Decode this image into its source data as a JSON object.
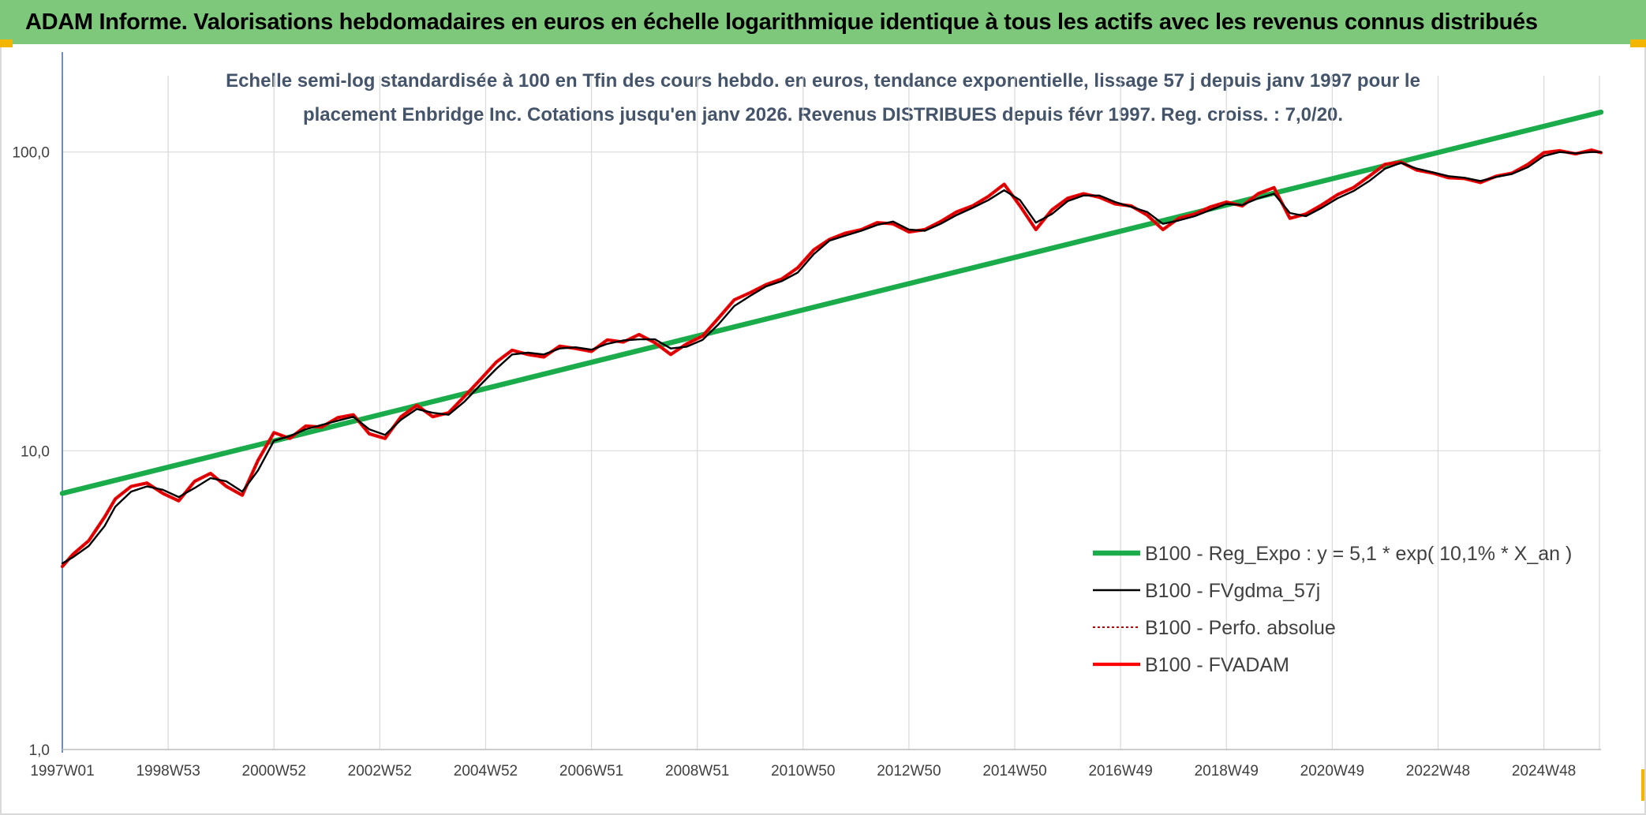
{
  "header": {
    "title": "ADAM Informe. Valorisations hebdomadaires en euros en échelle logarithmique identique à tous les actifs avec les revenus connus distribués"
  },
  "colors": {
    "banner": "#7dc87a",
    "trend": "#1aab4b",
    "moving_average": "#000000",
    "absolute": "#c00000",
    "fvadam": "#ff0000"
  },
  "chart_data": {
    "type": "line",
    "title": "Echelle semi-log standardisée à 100 en Tfin des cours hebdo. en euros, tendance exponentielle, lissage 57 j depuis janv 1997 pour le",
    "subtitle": "placement Enbridge Inc. Cotations jusqu'en janv 2026. Revenus DISTRIBUES depuis févr 1997. Reg. croiss. : 7,0/20.",
    "yscale": "log",
    "ylim": [
      1,
      180
    ],
    "xlim": [
      1997.0,
      2026.08
    ],
    "yticks": [
      {
        "value": 1,
        "label": "1,0"
      },
      {
        "value": 10,
        "label": "10,0"
      },
      {
        "value": 100,
        "label": "100,0"
      }
    ],
    "xticks": [
      {
        "value": 1997.0,
        "label": "1997W01"
      },
      {
        "value": 1999.0,
        "label": "1998W53"
      },
      {
        "value": 2001.0,
        "label": "2000W52"
      },
      {
        "value": 2003.0,
        "label": "2002W52"
      },
      {
        "value": 2005.0,
        "label": "2004W52"
      },
      {
        "value": 2007.0,
        "label": "2006W51"
      },
      {
        "value": 2009.0,
        "label": "2008W51"
      },
      {
        "value": 2011.0,
        "label": "2010W50"
      },
      {
        "value": 2013.0,
        "label": "2012W50"
      },
      {
        "value": 2015.0,
        "label": "2014W50"
      },
      {
        "value": 2017.0,
        "label": "2016W49"
      },
      {
        "value": 2019.0,
        "label": "2018W49"
      },
      {
        "value": 2021.0,
        "label": "2020W49"
      },
      {
        "value": 2023.0,
        "label": "2022W48"
      },
      {
        "value": 2025.0,
        "label": "2024W48"
      }
    ],
    "grid": true,
    "legend_position": "bottom-right",
    "series": [
      {
        "name": "B100 - Reg_Expo : y = 5,1 * exp( 10,1% *  X_an )",
        "style": "trend",
        "x": [
          1997.0,
          2026.08
        ],
        "y": [
          7.2,
          136
        ]
      },
      {
        "name": "B100 - FVgdma_57j",
        "style": "moving_average",
        "x": [
          1997.0,
          1997.2,
          1997.5,
          1997.8,
          1998.0,
          1998.3,
          1998.6,
          1998.9,
          1999.2,
          1999.5,
          1999.8,
          2000.1,
          2000.4,
          2000.7,
          2001.0,
          2001.3,
          2001.6,
          2001.9,
          2002.2,
          2002.5,
          2002.8,
          2003.1,
          2003.4,
          2003.7,
          2004.0,
          2004.3,
          2004.6,
          2004.9,
          2005.2,
          2005.5,
          2005.8,
          2006.1,
          2006.4,
          2006.7,
          2007.0,
          2007.3,
          2007.6,
          2007.9,
          2008.2,
          2008.5,
          2008.8,
          2009.1,
          2009.4,
          2009.7,
          2010.0,
          2010.3,
          2010.6,
          2010.9,
          2011.2,
          2011.5,
          2011.8,
          2012.1,
          2012.4,
          2012.7,
          2013.0,
          2013.3,
          2013.6,
          2013.9,
          2014.2,
          2014.5,
          2014.8,
          2015.1,
          2015.4,
          2015.7,
          2016.0,
          2016.3,
          2016.6,
          2016.9,
          2017.2,
          2017.5,
          2017.8,
          2018.1,
          2018.4,
          2018.7,
          2019.0,
          2019.3,
          2019.6,
          2019.9,
          2020.2,
          2020.5,
          2020.8,
          2021.1,
          2021.4,
          2021.7,
          2022.0,
          2022.3,
          2022.6,
          2022.9,
          2023.2,
          2023.5,
          2023.8,
          2024.1,
          2024.4,
          2024.7,
          2025.0,
          2025.3,
          2025.6,
          2025.9,
          2026.08
        ],
        "y": [
          4.2,
          4.4,
          4.8,
          5.6,
          6.5,
          7.3,
          7.6,
          7.4,
          7.0,
          7.5,
          8.1,
          7.9,
          7.3,
          8.6,
          10.8,
          11.2,
          11.8,
          12.2,
          12.6,
          13.0,
          11.8,
          11.3,
          12.7,
          13.8,
          13.4,
          13.2,
          14.6,
          16.6,
          18.8,
          21.0,
          21.3,
          21.0,
          22.0,
          22.2,
          21.8,
          22.8,
          23.4,
          23.6,
          23.6,
          22.0,
          22.3,
          23.5,
          26.5,
          30.5,
          33.0,
          35.5,
          37.0,
          39.5,
          45.5,
          50.5,
          52.5,
          54.5,
          57.0,
          58.5,
          55.0,
          54.5,
          57.5,
          61.5,
          65.0,
          69.0,
          74.5,
          69.0,
          58.0,
          62.0,
          68.5,
          71.5,
          71.5,
          68.0,
          65.5,
          63.0,
          57.5,
          59.0,
          61.0,
          64.0,
          67.0,
          66.5,
          70.0,
          72.5,
          62.5,
          61.0,
          65.0,
          70.0,
          74.0,
          80.0,
          88.0,
          92.0,
          88.0,
          85.5,
          83.0,
          82.0,
          80.0,
          82.5,
          84.5,
          89.0,
          97.0,
          100.0,
          99.0,
          100.0,
          100.0
        ]
      },
      {
        "name": "B100 - Perfo. absolue",
        "style": "absolute",
        "x": [
          1997.0,
          1997.2,
          1997.5,
          1997.8,
          1998.0,
          1998.3,
          1998.6,
          1998.9,
          1999.2,
          1999.5,
          1999.8,
          2000.1,
          2000.4,
          2000.7,
          2001.0,
          2001.3,
          2001.6,
          2001.9,
          2002.2,
          2002.5,
          2002.8,
          2003.1,
          2003.4,
          2003.7,
          2004.0,
          2004.3,
          2004.6,
          2004.9,
          2005.2,
          2005.5,
          2005.8,
          2006.1,
          2006.4,
          2006.7,
          2007.0,
          2007.3,
          2007.6,
          2007.9,
          2008.2,
          2008.5,
          2008.8,
          2009.1,
          2009.4,
          2009.7,
          2010.0,
          2010.3,
          2010.6,
          2010.9,
          2011.2,
          2011.5,
          2011.8,
          2012.1,
          2012.4,
          2012.7,
          2013.0,
          2013.3,
          2013.6,
          2013.9,
          2014.2,
          2014.5,
          2014.8,
          2015.1,
          2015.4,
          2015.7,
          2016.0,
          2016.3,
          2016.6,
          2016.9,
          2017.2,
          2017.5,
          2017.8,
          2018.1,
          2018.4,
          2018.7,
          2019.0,
          2019.3,
          2019.6,
          2019.9,
          2020.2,
          2020.5,
          2020.8,
          2021.1,
          2021.4,
          2021.7,
          2022.0,
          2022.3,
          2022.6,
          2022.9,
          2023.2,
          2023.5,
          2023.8,
          2024.1,
          2024.4,
          2024.7,
          2025.0,
          2025.3,
          2025.6,
          2025.9,
          2026.08
        ],
        "y": [
          4.1,
          4.5,
          5.0,
          6.0,
          6.9,
          7.6,
          7.8,
          7.2,
          6.8,
          7.9,
          8.4,
          7.6,
          7.1,
          9.3,
          11.5,
          11.0,
          12.1,
          12.0,
          12.9,
          13.2,
          11.4,
          11.0,
          13.0,
          14.2,
          13.0,
          13.4,
          15.2,
          17.3,
          19.8,
          21.7,
          21.0,
          20.6,
          22.4,
          22.0,
          21.5,
          23.5,
          23.1,
          24.5,
          23.0,
          21.0,
          22.8,
          24.2,
          27.8,
          32.0,
          33.8,
          36.0,
          37.6,
          41.0,
          47.0,
          51.0,
          53.5,
          55.0,
          58.0,
          57.5,
          54.0,
          55.0,
          58.5,
          63.0,
          66.0,
          71.0,
          78.0,
          66.0,
          55.0,
          64.0,
          70.0,
          72.5,
          70.5,
          67.0,
          66.0,
          61.5,
          55.0,
          60.0,
          62.0,
          65.5,
          68.0,
          66.0,
          72.5,
          76.0,
          60.0,
          62.0,
          66.5,
          72.0,
          76.0,
          83.0,
          91.0,
          92.5,
          87.0,
          85.0,
          82.0,
          81.5,
          79.0,
          83.0,
          85.0,
          91.0,
          99.5,
          101.0,
          98.5,
          101.5,
          99.5
        ]
      },
      {
        "name": "B100 - FVADAM",
        "style": "fvadam",
        "x": [
          1997.0,
          1997.2,
          1997.5,
          1997.8,
          1998.0,
          1998.3,
          1998.6,
          1998.9,
          1999.2,
          1999.5,
          1999.8,
          2000.1,
          2000.4,
          2000.7,
          2001.0,
          2001.3,
          2001.6,
          2001.9,
          2002.2,
          2002.5,
          2002.8,
          2003.1,
          2003.4,
          2003.7,
          2004.0,
          2004.3,
          2004.6,
          2004.9,
          2005.2,
          2005.5,
          2005.8,
          2006.1,
          2006.4,
          2006.7,
          2007.0,
          2007.3,
          2007.6,
          2007.9,
          2008.2,
          2008.5,
          2008.8,
          2009.1,
          2009.4,
          2009.7,
          2010.0,
          2010.3,
          2010.6,
          2010.9,
          2011.2,
          2011.5,
          2011.8,
          2012.1,
          2012.4,
          2012.7,
          2013.0,
          2013.3,
          2013.6,
          2013.9,
          2014.2,
          2014.5,
          2014.8,
          2015.1,
          2015.4,
          2015.7,
          2016.0,
          2016.3,
          2016.6,
          2016.9,
          2017.2,
          2017.5,
          2017.8,
          2018.1,
          2018.4,
          2018.7,
          2019.0,
          2019.3,
          2019.6,
          2019.9,
          2020.2,
          2020.5,
          2020.8,
          2021.1,
          2021.4,
          2021.7,
          2022.0,
          2022.3,
          2022.6,
          2022.9,
          2023.2,
          2023.5,
          2023.8,
          2024.1,
          2024.4,
          2024.7,
          2025.0,
          2025.3,
          2025.6,
          2025.9,
          2026.08
        ],
        "y": [
          4.1,
          4.5,
          5.0,
          6.0,
          6.9,
          7.6,
          7.8,
          7.2,
          6.8,
          7.9,
          8.4,
          7.6,
          7.1,
          9.3,
          11.5,
          11.0,
          12.1,
          12.0,
          12.9,
          13.2,
          11.4,
          11.0,
          13.0,
          14.2,
          13.0,
          13.4,
          15.2,
          17.3,
          19.8,
          21.7,
          21.0,
          20.6,
          22.4,
          22.0,
          21.5,
          23.5,
          23.1,
          24.5,
          23.0,
          21.0,
          22.8,
          24.2,
          27.8,
          32.0,
          33.8,
          36.0,
          37.6,
          41.0,
          47.0,
          51.0,
          53.5,
          55.0,
          58.0,
          57.5,
          54.0,
          55.0,
          58.5,
          63.0,
          66.0,
          71.0,
          78.0,
          66.0,
          55.0,
          64.0,
          70.0,
          72.5,
          70.5,
          67.0,
          66.0,
          61.5,
          55.0,
          60.0,
          62.0,
          65.5,
          68.0,
          66.0,
          72.5,
          76.0,
          60.0,
          62.0,
          66.5,
          72.0,
          76.0,
          83.0,
          91.0,
          92.5,
          87.0,
          85.0,
          82.0,
          81.5,
          79.0,
          83.0,
          85.0,
          91.0,
          99.5,
          101.0,
          98.5,
          101.5,
          99.5
        ]
      }
    ]
  }
}
